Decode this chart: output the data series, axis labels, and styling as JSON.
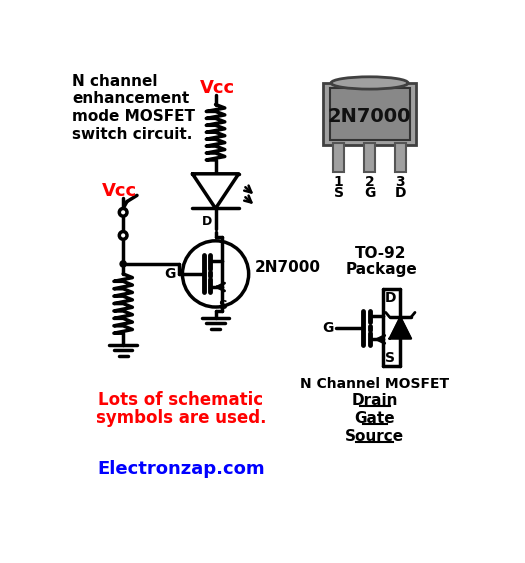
{
  "bg_color": "#ffffff",
  "title_lines": [
    "N channel",
    "enhancement",
    "mode MOSFET",
    "switch circuit."
  ],
  "title_color": "#000000",
  "vcc_color": "#ff0000",
  "red_text": "#ff0000",
  "blue_text": "#0000ff",
  "black": "#000000",
  "body_fc": "#a0a0a0",
  "body_ec": "#404040",
  "face_fc": "#888888",
  "face_ec": "#333333",
  "pin_fc": "#a0a0a0",
  "pin_ec": "#555555",
  "footer": "Electronzap.com",
  "note_line1": "Lots of schematic",
  "note_line2": "symbols are used.",
  "package_line1": "TO-92",
  "package_line2": "Package",
  "mosfet_label": "N Channel MOSFET",
  "drain_label": "Drain",
  "gate_label": "Gate",
  "source_label": "Source",
  "chip_label": "2N7000",
  "circuit_label": "2N7000"
}
